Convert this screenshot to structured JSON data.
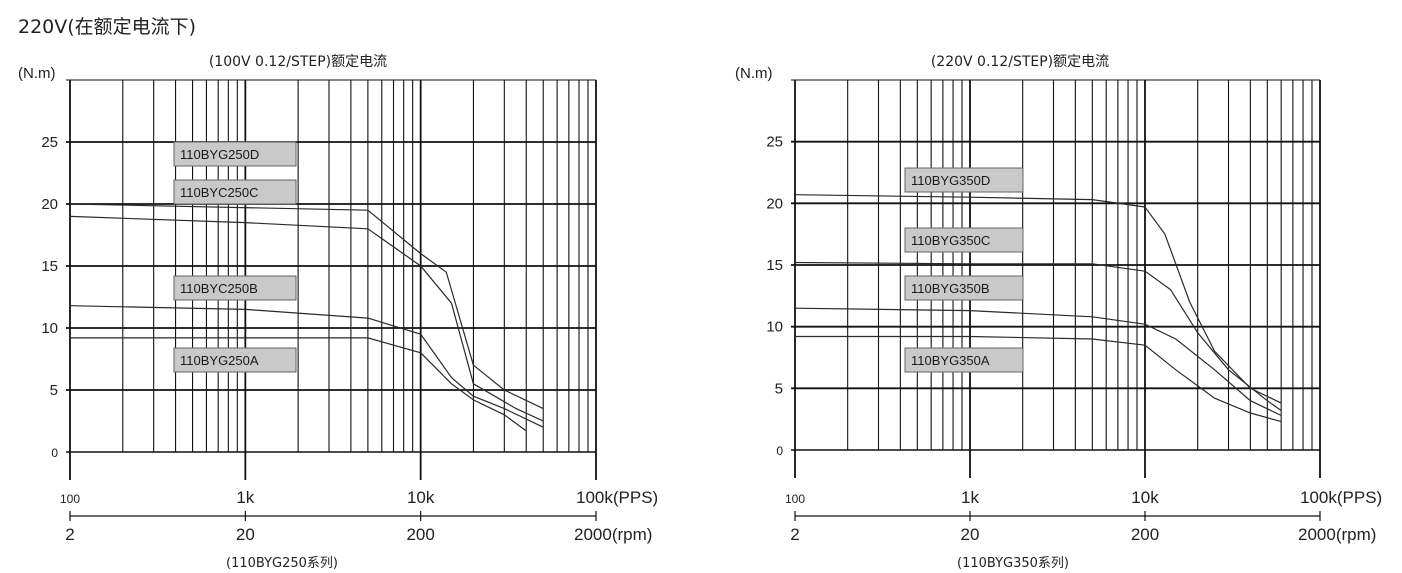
{
  "page_title": "220V(在额定电流下)",
  "chart_data": [
    {
      "type": "line",
      "title": "(100V 0.12/STEP)额定电流",
      "ylabel": "(N.m)",
      "ylim": [
        0,
        30
      ],
      "yticks": [
        0,
        5,
        10,
        15,
        20,
        25
      ],
      "xscale": "log",
      "xlim": [
        100,
        100000
      ],
      "x_tick_labels": [
        "100",
        "1k",
        "10k",
        "100k(PPS)"
      ],
      "rpm_tick_labels": [
        "2",
        "20",
        "200",
        "2000(rpm)"
      ],
      "caption": "(110BYG250系列)",
      "grid": true,
      "series": [
        {
          "name": "110BYG250D",
          "x": [
            100,
            5000,
            10000,
            14000,
            20000,
            30000,
            50000
          ],
          "y": [
            20,
            19.5,
            16,
            14.5,
            7,
            5,
            3.5
          ]
        },
        {
          "name": "110BYC250C",
          "x": [
            100,
            1000,
            5000,
            10000,
            15000,
            20000,
            35000,
            50000
          ],
          "y": [
            19,
            18.5,
            18,
            15,
            12,
            5.5,
            3.5,
            2.5
          ]
        },
        {
          "name": "110BYC250B",
          "x": [
            100,
            1000,
            5000,
            10000,
            15000,
            20000,
            30000,
            50000
          ],
          "y": [
            11.8,
            11.5,
            10.8,
            9.5,
            6,
            4.5,
            3.5,
            2
          ]
        },
        {
          "name": "110BYG250A",
          "x": [
            100,
            1000,
            5000,
            10000,
            15000,
            20000,
            30000,
            40000
          ],
          "y": [
            9.2,
            9.2,
            9.2,
            8,
            5.5,
            4.2,
            3,
            1.7
          ]
        }
      ]
    },
    {
      "type": "line",
      "title": "(220V 0.12/STEP)额定电流",
      "ylabel": "(N.m)",
      "ylim": [
        0,
        30
      ],
      "yticks": [
        0,
        5,
        10,
        15,
        20,
        25
      ],
      "xscale": "log",
      "xlim": [
        100,
        100000
      ],
      "x_tick_labels": [
        "100",
        "1k",
        "10k",
        "100k(PPS)"
      ],
      "rpm_tick_labels": [
        "2",
        "20",
        "200",
        "2000(rpm)"
      ],
      "caption": "(110BYG350系列)",
      "grid": true,
      "series": [
        {
          "name": "110BYG350D",
          "x": [
            100,
            1000,
            5000,
            10000,
            13000,
            18000,
            25000,
            40000,
            60000
          ],
          "y": [
            20.7,
            20.5,
            20.3,
            19.7,
            17.5,
            12,
            8,
            5,
            3.8
          ]
        },
        {
          "name": "110BYG350C",
          "x": [
            100,
            1000,
            5000,
            10000,
            14000,
            20000,
            30000,
            50000,
            60000
          ],
          "y": [
            15.2,
            15.1,
            15.1,
            14.5,
            13,
            9.5,
            6.5,
            4,
            3.2
          ]
        },
        {
          "name": "110BYG350B",
          "x": [
            100,
            1000,
            5000,
            10000,
            15000,
            25000,
            40000,
            60000
          ],
          "y": [
            11.5,
            11.3,
            10.8,
            10.2,
            9,
            6.5,
            4,
            2.8
          ]
        },
        {
          "name": "110BYG350A",
          "x": [
            100,
            1000,
            5000,
            10000,
            15000,
            25000,
            40000,
            60000
          ],
          "y": [
            9.2,
            9.2,
            9,
            8.5,
            6.5,
            4.2,
            3,
            2.3
          ]
        }
      ]
    }
  ],
  "legend_colors": {
    "box_fill": "#c9c9c9",
    "box_stroke": "#666666",
    "curve": "#2a2a2a"
  }
}
